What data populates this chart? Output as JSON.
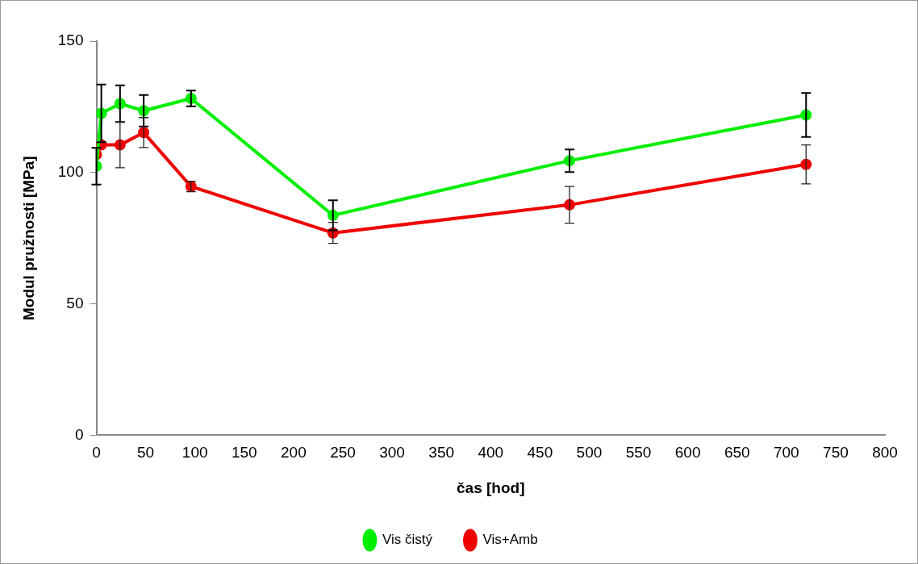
{
  "chart_data": {
    "type": "line",
    "xlabel": "čas [hod]",
    "ylabel": "Modul pružnosti [MPa]",
    "x": [
      0,
      5,
      24,
      48,
      96,
      240,
      480,
      720
    ],
    "xlim": [
      0,
      800
    ],
    "xticks": [
      0,
      50,
      100,
      150,
      200,
      250,
      300,
      350,
      400,
      450,
      500,
      550,
      600,
      650,
      700,
      750,
      800
    ],
    "ylim": [
      0,
      150
    ],
    "yticks": [
      0,
      50,
      100,
      150
    ],
    "series": [
      {
        "name": "Vis čistý",
        "color": "#00ee00",
        "values": [
          102.4,
          122.5,
          126.2,
          123.5,
          128.2,
          83.7,
          104.5,
          121.9
        ],
        "errors": [
          7,
          11,
          7,
          6,
          3,
          5.7,
          4.3,
          8.4
        ]
      },
      {
        "name": "Vis+Amb",
        "color": "#ee0000",
        "values": [
          106.8,
          110.5,
          110.5,
          115.2,
          94.7,
          77,
          87.7,
          103.1
        ],
        "errors": [
          null,
          null,
          8.7,
          5.7,
          2,
          4,
          7,
          7.4
        ]
      }
    ],
    "grid": false,
    "legend": "bottom",
    "marker": "circle",
    "line_style": "solid"
  }
}
